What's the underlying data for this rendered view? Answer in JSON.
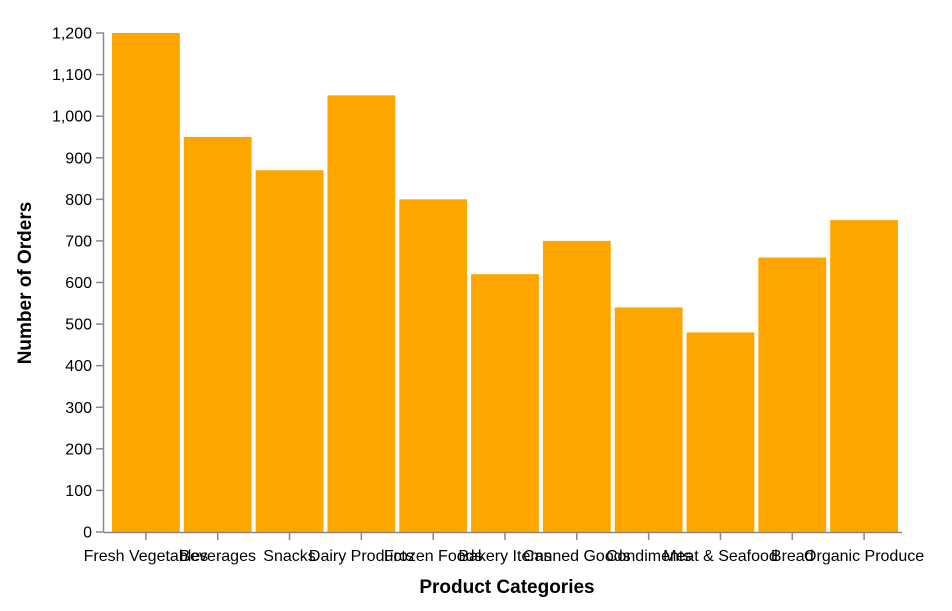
{
  "chart_data": {
    "type": "bar",
    "categories": [
      "Fresh Vegetables",
      "Beverages",
      "Snacks",
      "Dairy Products",
      "Frozen Foods",
      "Bakery Items",
      "Canned Goods",
      "Condiments",
      "Meat & Seafood",
      "Bread",
      "Organic Produce"
    ],
    "values": [
      1200,
      950,
      870,
      1050,
      800,
      620,
      700,
      540,
      480,
      660,
      750
    ],
    "xlabel": "Product Categories",
    "ylabel": "Number of Orders",
    "ylim": [
      0,
      1200
    ],
    "yticks": [
      0,
      100,
      200,
      300,
      400,
      500,
      600,
      700,
      800,
      900,
      1000,
      1100,
      1200
    ],
    "ytick_labels": [
      "0",
      "100",
      "200",
      "300",
      "400",
      "500",
      "600",
      "700",
      "800",
      "900",
      "1,000",
      "1,100",
      "1,200"
    ],
    "bar_color": "#FFA500",
    "grid": false,
    "legend": "none"
  }
}
